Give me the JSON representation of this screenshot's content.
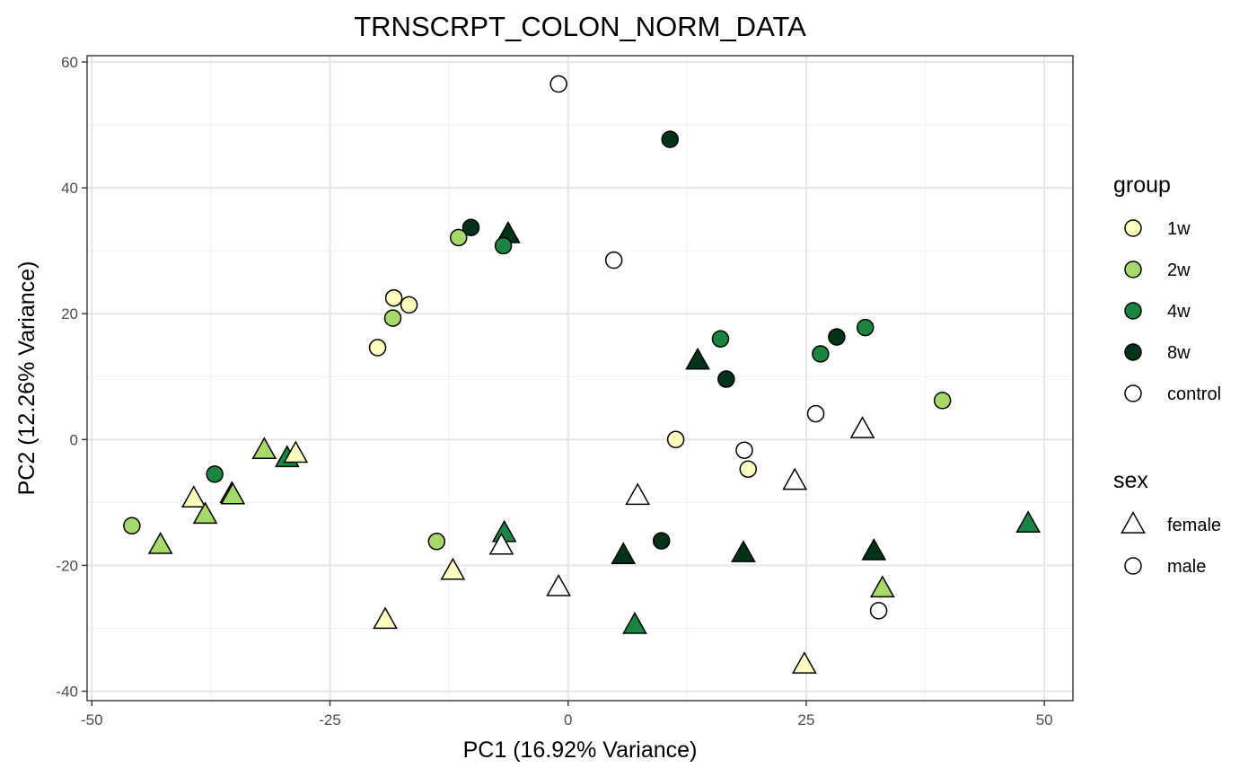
{
  "chart_data": {
    "type": "scatter",
    "title": "TRNSCRPT_COLON_NORM_DATA",
    "xlabel": "PC1 (16.92% Variance)",
    "ylabel": "PC2 (12.26% Variance)",
    "xlim": [
      -50.5,
      53
    ],
    "ylim": [
      -41.5,
      61
    ],
    "xticks": [
      -50,
      -25,
      0,
      25,
      50
    ],
    "xtick_labels": [
      "-50",
      "-25",
      "0",
      "25",
      "50"
    ],
    "yticks": [
      -40,
      -20,
      0,
      20,
      40,
      60
    ],
    "ytick_labels": [
      "-40",
      "-20",
      "0",
      "20",
      "40",
      "60"
    ],
    "grid": true,
    "legend_position": "right",
    "legend": {
      "group": {
        "title": "group",
        "items": [
          {
            "label": "1w",
            "color": "#ffffbf"
          },
          {
            "label": "2w",
            "color": "#a6d96a"
          },
          {
            "label": "4w",
            "color": "#1a8442"
          },
          {
            "label": "8w",
            "color": "#00331a"
          },
          {
            "label": "control",
            "color": "#ffffff"
          }
        ]
      },
      "sex": {
        "title": "sex",
        "items": [
          {
            "label": "female",
            "shape": "triangle"
          },
          {
            "label": "male",
            "shape": "circle"
          }
        ]
      }
    },
    "points": [
      {
        "x": -1,
        "y": 56.5,
        "group": "control",
        "sex": "male"
      },
      {
        "x": 10.7,
        "y": 47.7,
        "group": "8w",
        "sex": "male"
      },
      {
        "x": -10.2,
        "y": 33.7,
        "group": "8w",
        "sex": "male"
      },
      {
        "x": -6.3,
        "y": 32.6,
        "group": "8w",
        "sex": "female"
      },
      {
        "x": -11.5,
        "y": 32.1,
        "group": "2w",
        "sex": "male"
      },
      {
        "x": -6.8,
        "y": 30.8,
        "group": "4w",
        "sex": "male"
      },
      {
        "x": 4.8,
        "y": 28.5,
        "group": "control",
        "sex": "male"
      },
      {
        "x": -18.3,
        "y": 22.5,
        "group": "1w",
        "sex": "male"
      },
      {
        "x": -16.7,
        "y": 21.4,
        "group": "1w",
        "sex": "male"
      },
      {
        "x": -18.4,
        "y": 19.3,
        "group": "2w",
        "sex": "male"
      },
      {
        "x": -20.0,
        "y": 14.6,
        "group": "1w",
        "sex": "male"
      },
      {
        "x": 16.0,
        "y": 16.0,
        "group": "4w",
        "sex": "male"
      },
      {
        "x": 31.2,
        "y": 17.8,
        "group": "4w",
        "sex": "male"
      },
      {
        "x": 28.2,
        "y": 16.3,
        "group": "8w",
        "sex": "male"
      },
      {
        "x": 26.5,
        "y": 13.6,
        "group": "4w",
        "sex": "male"
      },
      {
        "x": 13.6,
        "y": 12.5,
        "group": "8w",
        "sex": "female"
      },
      {
        "x": 16.6,
        "y": 9.6,
        "group": "8w",
        "sex": "male"
      },
      {
        "x": 26.0,
        "y": 4.1,
        "group": "control",
        "sex": "male"
      },
      {
        "x": 39.3,
        "y": 6.2,
        "group": "2w",
        "sex": "male"
      },
      {
        "x": 30.9,
        "y": 1.6,
        "group": "control",
        "sex": "female"
      },
      {
        "x": 11.3,
        "y": 0.0,
        "group": "1w",
        "sex": "male"
      },
      {
        "x": 18.5,
        "y": -1.7,
        "group": "control",
        "sex": "male"
      },
      {
        "x": 18.9,
        "y": -4.7,
        "group": "1w",
        "sex": "male"
      },
      {
        "x": 23.8,
        "y": -6.6,
        "group": "control",
        "sex": "female"
      },
      {
        "x": 7.3,
        "y": -9.0,
        "group": "control",
        "sex": "female"
      },
      {
        "x": -37.1,
        "y": -5.5,
        "group": "4w",
        "sex": "male"
      },
      {
        "x": -31.9,
        "y": -1.7,
        "group": "2w",
        "sex": "female"
      },
      {
        "x": -29.5,
        "y": -3.0,
        "group": "4w",
        "sex": "female"
      },
      {
        "x": -28.6,
        "y": -2.3,
        "group": "1w",
        "sex": "female"
      },
      {
        "x": -35.3,
        "y": -8.7,
        "group": "4w",
        "sex": "female"
      },
      {
        "x": -35.2,
        "y": -8.9,
        "group": "2w",
        "sex": "female"
      },
      {
        "x": -39.3,
        "y": -9.4,
        "group": "1w",
        "sex": "female"
      },
      {
        "x": -38.1,
        "y": -12.0,
        "group": "2w",
        "sex": "female"
      },
      {
        "x": -45.8,
        "y": -13.7,
        "group": "2w",
        "sex": "male"
      },
      {
        "x": -42.8,
        "y": -16.8,
        "group": "2w",
        "sex": "female"
      },
      {
        "x": -13.8,
        "y": -16.2,
        "group": "2w",
        "sex": "male"
      },
      {
        "x": -6.7,
        "y": -14.9,
        "group": "4w",
        "sex": "female"
      },
      {
        "x": -7.0,
        "y": -16.9,
        "group": "control",
        "sex": "female"
      },
      {
        "x": -12.1,
        "y": -20.9,
        "group": "1w",
        "sex": "female"
      },
      {
        "x": 5.8,
        "y": -18.4,
        "group": "8w",
        "sex": "female"
      },
      {
        "x": 9.8,
        "y": -16.1,
        "group": "8w",
        "sex": "male"
      },
      {
        "x": 18.4,
        "y": -18.1,
        "group": "8w",
        "sex": "female"
      },
      {
        "x": 32.1,
        "y": -17.8,
        "group": "8w",
        "sex": "female"
      },
      {
        "x": 48.3,
        "y": -13.4,
        "group": "4w",
        "sex": "female"
      },
      {
        "x": -1.0,
        "y": -23.5,
        "group": "control",
        "sex": "female"
      },
      {
        "x": 33.0,
        "y": -23.7,
        "group": "2w",
        "sex": "female"
      },
      {
        "x": 32.6,
        "y": -27.2,
        "group": "control",
        "sex": "male"
      },
      {
        "x": -19.2,
        "y": -28.7,
        "group": "1w",
        "sex": "female"
      },
      {
        "x": 7.0,
        "y": -29.5,
        "group": "4w",
        "sex": "female"
      },
      {
        "x": 24.8,
        "y": -35.8,
        "group": "1w",
        "sex": "female"
      }
    ]
  }
}
